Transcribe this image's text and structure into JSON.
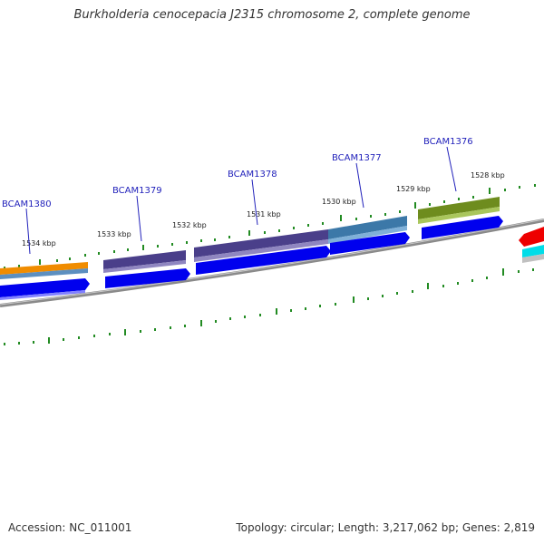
{
  "title": "Burkholderia cenocepacia J2315 chromosome 2, complete genome",
  "footer": {
    "accession": "Accession: NC_011001",
    "topology": "Topology: circular; Length: 3,217,062 bp; Genes: 2,819"
  },
  "ticks": [
    "1534 kbp",
    "1533 kbp",
    "1532 kbp",
    "1531 kbp",
    "1530 kbp",
    "1529 kbp",
    "1528 kbp"
  ],
  "genes": [
    "BCAM1380",
    "BCAM1379",
    "BCAM1378",
    "BCAM1377",
    "BCAM1376"
  ],
  "colors": {
    "orange": "#f08c00",
    "purple": "#4a3f8a",
    "steel_blue": "#3c78a8",
    "olive": "#6e8c1e",
    "blue": "#0000ee",
    "red": "#ee0000",
    "cyan": "#00dde8",
    "green_ticks": "#228b22",
    "backbone": "#909090"
  }
}
